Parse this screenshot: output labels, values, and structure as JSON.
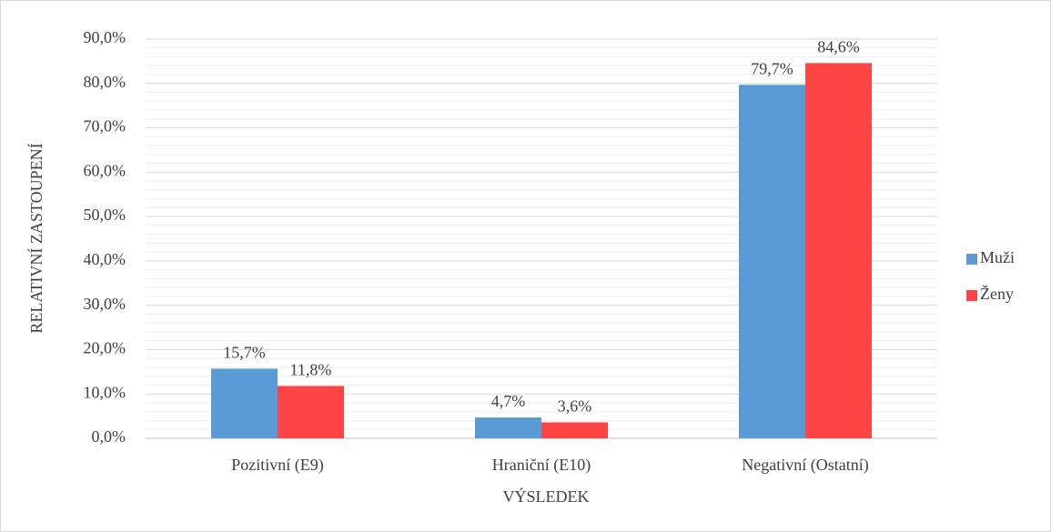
{
  "chart_data": {
    "type": "bar",
    "categories": [
      "Pozitivní (E9)",
      "Hraniční (E10)",
      "Negativní (Ostatní)"
    ],
    "series": [
      {
        "name": "Muži",
        "color": "#5b9bd5",
        "values": [
          15.7,
          4.7,
          79.7
        ],
        "value_labels": [
          "15,7%",
          "4,7%",
          "79,7%"
        ]
      },
      {
        "name": "Ženy",
        "color": "#ff4444",
        "values": [
          11.8,
          3.6,
          84.6
        ],
        "value_labels": [
          "11,8%",
          "3,6%",
          "84,6%"
        ]
      }
    ],
    "xlabel": "VÝSLEDEK",
    "ylabel": "RELATIVNÍ ZASTOUPENÍ",
    "ylim": [
      0,
      90
    ],
    "yticks": [
      {
        "value": 0,
        "label": "0,0%"
      },
      {
        "value": 10,
        "label": "10,0%"
      },
      {
        "value": 20,
        "label": "20,0%"
      },
      {
        "value": 30,
        "label": "30,0%"
      },
      {
        "value": 40,
        "label": "40,0%"
      },
      {
        "value": 50,
        "label": "50,0%"
      },
      {
        "value": 60,
        "label": "60,0%"
      },
      {
        "value": 70,
        "label": "70,0%"
      },
      {
        "value": 80,
        "label": "80,0%"
      },
      {
        "value": 90,
        "label": "90,0%"
      }
    ],
    "yminorticks": [
      2,
      4,
      6,
      8,
      12,
      14,
      16,
      18,
      22,
      24,
      26,
      28,
      32,
      34,
      36,
      38,
      42,
      44,
      46,
      48,
      52,
      54,
      56,
      58,
      62,
      64,
      66,
      68,
      72,
      74,
      76,
      78,
      82,
      84,
      86,
      88
    ],
    "grid": true,
    "legend": "right"
  }
}
